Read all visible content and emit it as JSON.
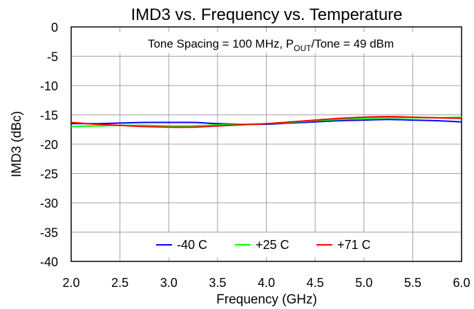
{
  "chart_data": {
    "type": "line",
    "title": "IMD3 vs. Frequency vs. Temperature",
    "annotation": {
      "prefix": "Tone Spacing = 100 MHz, P",
      "subscript": "OUT",
      "suffix": "/Tone = 49 dBm"
    },
    "xlabel": "Frequency (GHz)",
    "ylabel": "IMD3 (dBc)",
    "xlim": [
      2.0,
      6.0
    ],
    "ylim": [
      -40,
      0
    ],
    "xticks": [
      2.0,
      2.5,
      3.0,
      3.5,
      4.0,
      4.5,
      5.0,
      5.5,
      6.0
    ],
    "xtick_labels": [
      "2.0",
      "2.5",
      "3.0",
      "3.5",
      "4.0",
      "4.5",
      "5.0",
      "5.5",
      "6.0"
    ],
    "yticks": [
      0,
      -5,
      -10,
      -15,
      -20,
      -25,
      -30,
      -35,
      -40
    ],
    "ytick_labels": [
      "0",
      "-5",
      "-10",
      "-15",
      "-20",
      "-25",
      "-30",
      "-35",
      "-40"
    ],
    "grid": true,
    "legend_position": "bottom-center",
    "series": [
      {
        "name": "-40 C",
        "color": "#0000ff",
        "x": [
          2.0,
          2.25,
          2.5,
          2.75,
          3.0,
          3.25,
          3.5,
          3.75,
          4.0,
          4.25,
          4.5,
          4.75,
          5.0,
          5.25,
          5.5,
          5.75,
          6.0
        ],
        "y": [
          -16.5,
          -16.5,
          -16.4,
          -16.3,
          -16.3,
          -16.3,
          -16.5,
          -16.6,
          -16.6,
          -16.4,
          -16.2,
          -16.0,
          -15.9,
          -15.8,
          -15.9,
          -16.0,
          -16.2
        ]
      },
      {
        "name": "+25 C",
        "color": "#00ff00",
        "x": [
          2.0,
          2.25,
          2.5,
          2.75,
          3.0,
          3.25,
          3.5,
          3.75,
          4.0,
          4.25,
          4.5,
          4.75,
          5.0,
          5.25,
          5.5,
          5.75,
          6.0
        ],
        "y": [
          -17.0,
          -16.9,
          -16.8,
          -16.8,
          -16.9,
          -16.9,
          -16.7,
          -16.6,
          -16.5,
          -16.3,
          -16.0,
          -15.8,
          -15.6,
          -15.5,
          -15.5,
          -15.5,
          -15.4
        ]
      },
      {
        "name": "+71 C",
        "color": "#ff0000",
        "x": [
          2.0,
          2.25,
          2.5,
          2.75,
          3.0,
          3.25,
          3.5,
          3.75,
          4.0,
          4.25,
          4.5,
          4.75,
          5.0,
          5.25,
          5.5,
          5.75,
          6.0
        ],
        "y": [
          -16.3,
          -16.6,
          -16.8,
          -17.0,
          -17.1,
          -17.1,
          -16.9,
          -16.7,
          -16.5,
          -16.2,
          -15.9,
          -15.6,
          -15.4,
          -15.3,
          -15.4,
          -15.5,
          -15.6
        ]
      }
    ]
  }
}
